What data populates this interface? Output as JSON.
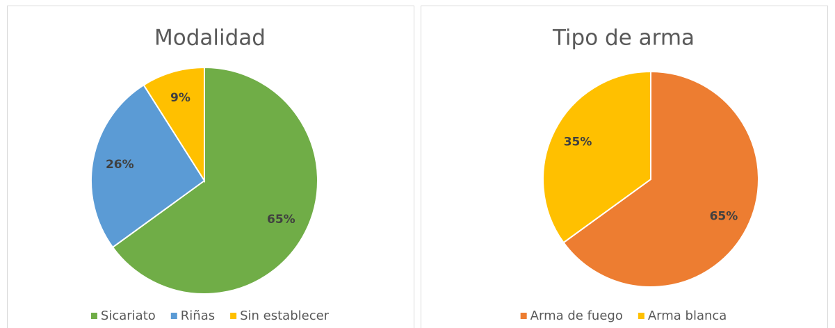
{
  "chart_data": [
    {
      "type": "pie",
      "title": "Modalidad",
      "categories": [
        "Sicariato",
        "Riñas",
        "Sin establecer"
      ],
      "values": [
        65,
        26,
        9
      ],
      "value_labels": [
        "65%",
        "26%",
        "9%"
      ],
      "colors": [
        "#70ad47",
        "#5b9bd5",
        "#ffc000"
      ]
    },
    {
      "type": "pie",
      "title": "Tipo de arma",
      "categories": [
        "Arma de fuego",
        "Arma blanca"
      ],
      "values": [
        65,
        35
      ],
      "value_labels": [
        "65%",
        "35%"
      ],
      "colors": [
        "#ed7d31",
        "#ffc000"
      ]
    }
  ]
}
